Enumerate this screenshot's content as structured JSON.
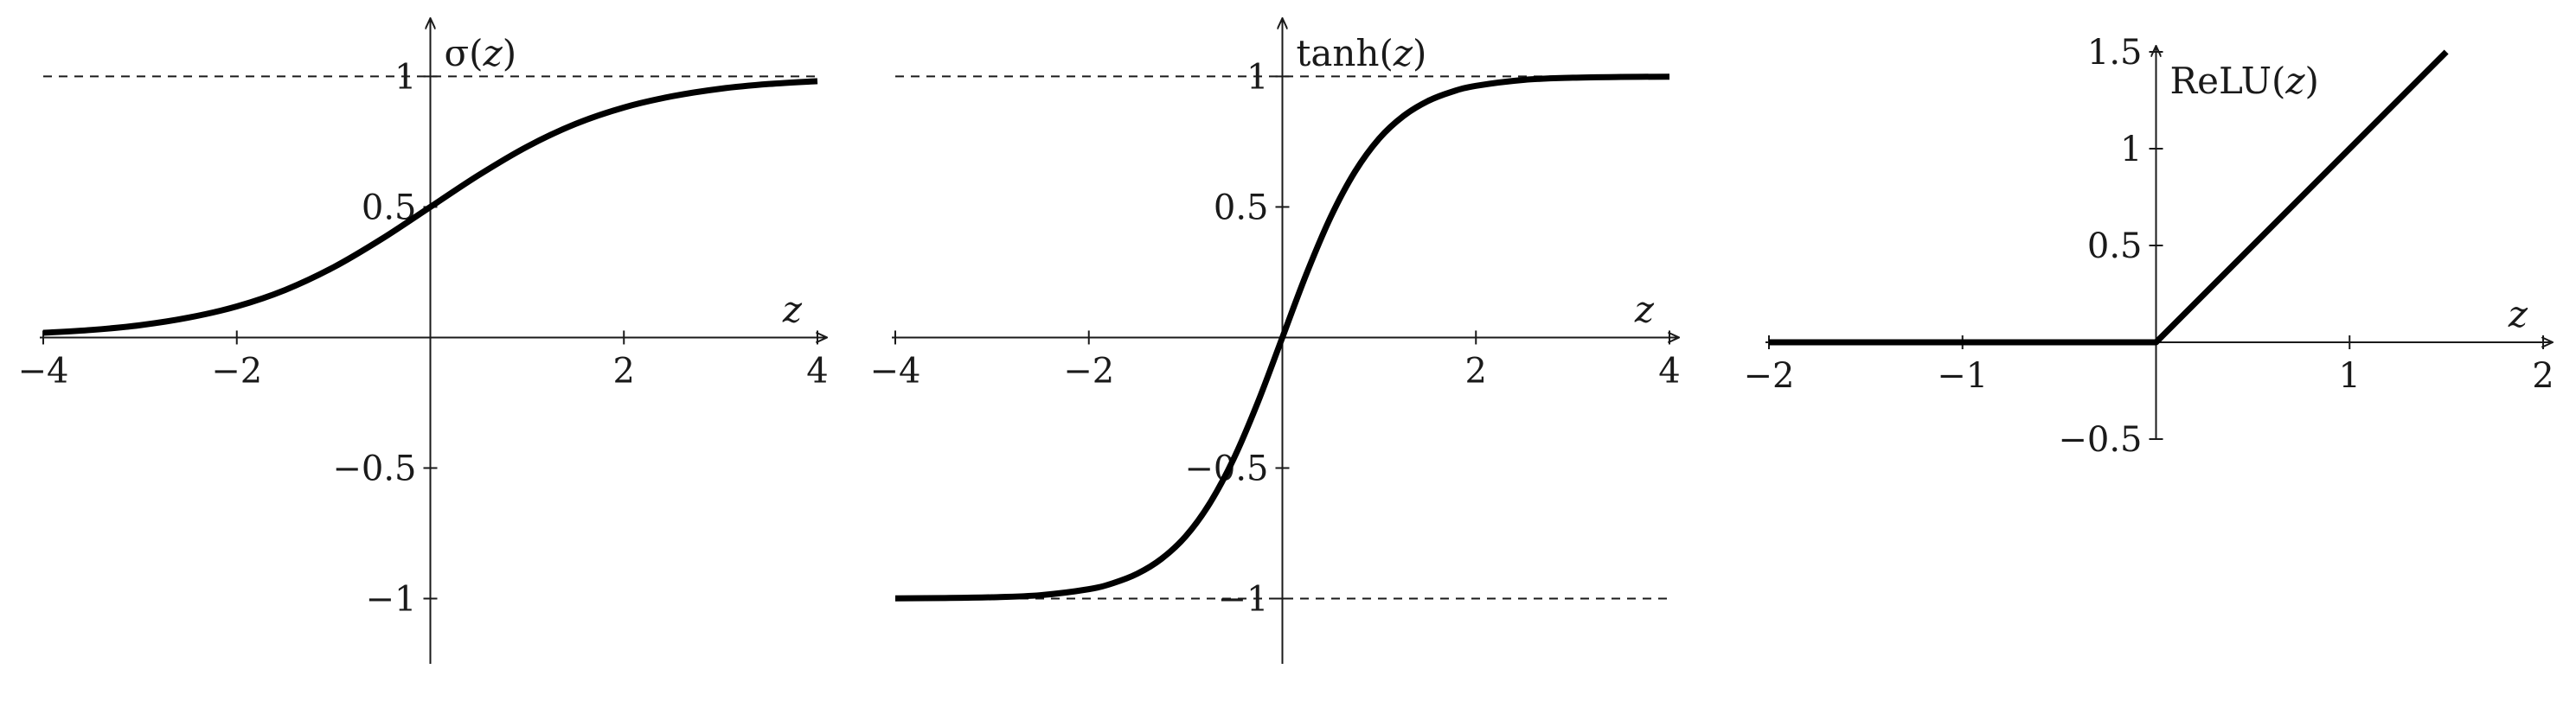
{
  "chart_data": [
    {
      "type": "line",
      "title": "",
      "xlabel": "z",
      "ylabel": "σ(z)",
      "ylabel_parts": {
        "fn": "σ(",
        "var": "z",
        "close": ")"
      },
      "xlim": [
        -4,
        4
      ],
      "ylim": [
        -1.25,
        1.25
      ],
      "xticks": [
        -4,
        -2,
        2,
        4
      ],
      "xtick_labels": [
        "−4",
        "−2",
        "2",
        "4"
      ],
      "yticks": [
        -1,
        -0.5,
        0.5,
        1
      ],
      "ytick_labels": [
        "−1",
        "−0.5",
        "0.5",
        "1"
      ],
      "reference_lines": [
        0,
        1
      ],
      "line_color": "#000000",
      "grid": false,
      "series": [
        {
          "x": [
            -4,
            -3.5,
            -3,
            -2.5,
            -2,
            -1.5,
            -1,
            -0.5,
            0,
            0.5,
            1,
            1.5,
            2,
            2.5,
            3,
            3.5,
            4
          ],
          "y": [
            0.018,
            0.029,
            0.047,
            0.076,
            0.119,
            0.182,
            0.269,
            0.378,
            0.5,
            0.622,
            0.731,
            0.818,
            0.881,
            0.924,
            0.953,
            0.971,
            0.982
          ]
        }
      ]
    },
    {
      "type": "line",
      "title": "",
      "xlabel": "z",
      "ylabel": "tanh(z)",
      "ylabel_parts": {
        "fn": "tanh(",
        "var": "z",
        "close": ")"
      },
      "xlim": [
        -4,
        4
      ],
      "ylim": [
        -1.25,
        1.25
      ],
      "xticks": [
        -4,
        -2,
        2,
        4
      ],
      "xtick_labels": [
        "−4",
        "−2",
        "2",
        "4"
      ],
      "yticks": [
        -1,
        -0.5,
        0.5,
        1
      ],
      "ytick_labels": [
        "−1",
        "−0.5",
        "0.5",
        "1"
      ],
      "reference_lines": [
        -1,
        1
      ],
      "line_color": "#000000",
      "grid": false,
      "series": [
        {
          "x": [
            -4,
            -3.5,
            -3,
            -2.5,
            -2,
            -1.75,
            -1.5,
            -1.25,
            -1,
            -0.75,
            -0.5,
            -0.25,
            0,
            0.25,
            0.5,
            0.75,
            1,
            1.25,
            1.5,
            1.75,
            2,
            2.5,
            3,
            3.5,
            4
          ],
          "y": [
            -0.999,
            -0.998,
            -0.995,
            -0.987,
            -0.964,
            -0.941,
            -0.905,
            -0.848,
            -0.762,
            -0.635,
            -0.462,
            -0.245,
            0,
            0.245,
            0.462,
            0.635,
            0.762,
            0.848,
            0.905,
            0.941,
            0.964,
            0.987,
            0.995,
            0.998,
            0.999
          ]
        }
      ]
    },
    {
      "type": "line",
      "title": "",
      "xlabel": "z",
      "ylabel": "ReLU(z)",
      "ylabel_parts": {
        "fn": "ReLU(",
        "var": "z",
        "close": ")"
      },
      "xlim": [
        -2,
        2
      ],
      "ylim": [
        -0.5,
        1.5
      ],
      "xticks": [
        -2,
        -1,
        1,
        2
      ],
      "xtick_labels": [
        "−2",
        "−1",
        "1",
        "2"
      ],
      "yticks": [
        -0.5,
        0.5,
        1,
        1.5
      ],
      "ytick_labels": [
        "−0.5",
        "0.5",
        "1",
        "1.5"
      ],
      "reference_lines": [],
      "line_color": "#000000",
      "grid": false,
      "series": [
        {
          "x": [
            -2,
            0,
            1.5
          ],
          "y": [
            0,
            0,
            1.5
          ]
        }
      ]
    }
  ]
}
